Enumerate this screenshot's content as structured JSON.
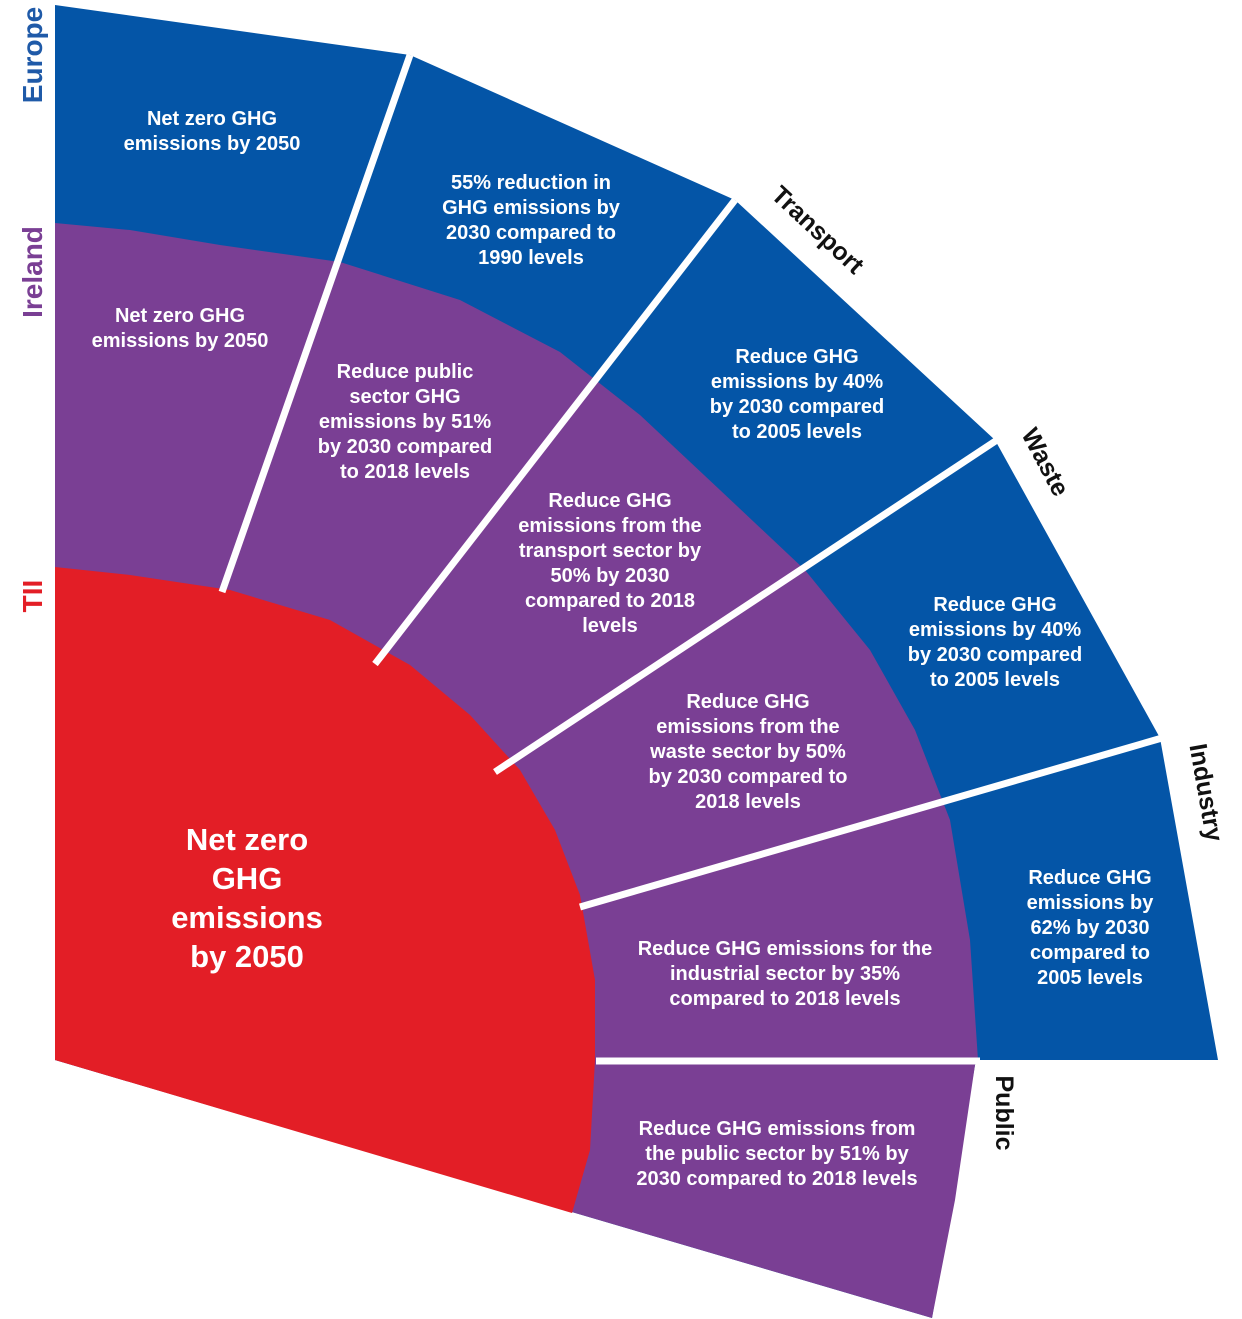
{
  "colors": {
    "europe": "#0455a7",
    "ireland": "#7a3f94",
    "tii": "#e31e26",
    "europe_label": "#1f5aa8",
    "ireland_label": "#7a3f94",
    "tii_label": "#e31e26"
  },
  "levels": {
    "europe": "Europe",
    "ireland": "Ireland",
    "tii": "TII"
  },
  "sectors": {
    "transport": "Transport",
    "waste": "Waste",
    "industry": "Industry",
    "public": "Public"
  },
  "tii": {
    "lines": [
      "Net zero",
      "GHG",
      "emissions",
      "by 2050"
    ]
  },
  "europe": {
    "overall": [
      "Net zero GHG",
      "emissions by 2050"
    ],
    "reduction_2030": [
      "55% reduction in",
      "GHG emissions by",
      "2030 compared to",
      "1990 levels"
    ],
    "transport": [
      "Reduce GHG",
      "emissions by 40%",
      "by 2030 compared",
      "to 2005 levels"
    ],
    "waste": [
      "Reduce GHG",
      "emissions by 40%",
      "by 2030 compared",
      "to 2005 levels"
    ],
    "industry": [
      "Reduce GHG",
      "emissions by",
      "62% by 2030",
      "compared to",
      "2005 levels"
    ]
  },
  "ireland": {
    "overall": [
      "Net zero GHG",
      "emissions by 2050"
    ],
    "public_sector": [
      "Reduce public",
      "sector GHG",
      "emissions by 51%",
      "by 2030 compared",
      "to 2018 levels"
    ],
    "transport": [
      "Reduce GHG",
      "emissions from the",
      "transport sector by",
      "50% by 2030",
      "compared to 2018",
      "levels"
    ],
    "waste": [
      "Reduce GHG",
      "emissions from the",
      "waste sector by 50%",
      "by 2030 compared to",
      "2018 levels"
    ],
    "industry": [
      "Reduce GHG emissions for the",
      "industrial sector by 35%",
      "compared to 2018 levels"
    ],
    "public": [
      "Reduce GHG emissions from",
      "the public sector by 51% by",
      "2030 compared to 2018 levels"
    ]
  }
}
